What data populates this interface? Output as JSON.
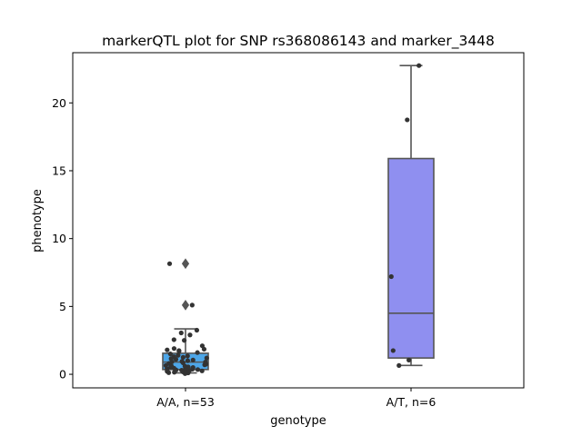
{
  "chart_data": {
    "type": "box",
    "title": "markerQTL plot for SNP rs368086143 and marker_3448",
    "xlabel": "genotype",
    "ylabel": "phenotype",
    "ylim": [
      -1.0,
      23.7
    ],
    "yticks": [
      0,
      5,
      10,
      15,
      20
    ],
    "grid": false,
    "categories": [
      "A/A, n=53",
      "A/T, n=6"
    ],
    "series": [
      {
        "category": "A/A, n=53",
        "color": "#4da6e8",
        "box": {
          "whisker_low": 0.1,
          "q1": 0.35,
          "median": 0.9,
          "q3": 1.55,
          "whisker_high": 3.35
        },
        "outliers": [
          5.1,
          8.15
        ],
        "points": [
          0.05,
          0.1,
          0.12,
          0.15,
          0.18,
          0.2,
          0.22,
          0.25,
          0.28,
          0.3,
          0.32,
          0.35,
          0.38,
          0.4,
          0.42,
          0.45,
          0.5,
          0.52,
          0.55,
          0.6,
          0.62,
          0.65,
          0.7,
          0.75,
          0.8,
          0.85,
          0.9,
          0.92,
          0.95,
          1.0,
          1.05,
          1.1,
          1.15,
          1.2,
          1.25,
          1.3,
          1.35,
          1.4,
          1.5,
          1.6,
          1.7,
          1.75,
          1.8,
          1.85,
          1.9,
          2.1,
          2.5,
          2.55,
          2.9,
          3.05,
          3.25,
          5.1,
          8.15
        ]
      },
      {
        "category": "A/T, n=6",
        "color": "#8f8ff0",
        "box": {
          "whisker_low": 0.65,
          "q1": 1.2,
          "median": 4.5,
          "q3": 15.9,
          "whisker_high": 22.75
        },
        "outliers": [],
        "points": [
          0.65,
          1.05,
          1.75,
          7.2,
          18.75,
          22.75
        ]
      }
    ]
  }
}
